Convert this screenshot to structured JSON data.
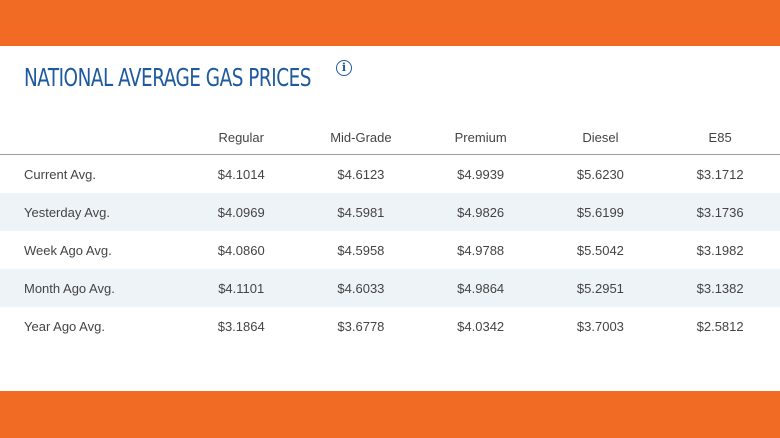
{
  "title": "NATIONAL AVERAGE GAS PRICES",
  "info_icon": "info-icon",
  "colors": {
    "accent_band": "#f26b24",
    "title": "#1f5a9e",
    "alt_row": "#eef3f8"
  },
  "table": {
    "headers": [
      "",
      "Regular",
      "Mid-Grade",
      "Premium",
      "Diesel",
      "E85"
    ],
    "rows": [
      {
        "label": "Current Avg.",
        "values": [
          "$4.1014",
          "$4.6123",
          "$4.9939",
          "$5.6230",
          "$3.1712"
        ]
      },
      {
        "label": "Yesterday Avg.",
        "values": [
          "$4.0969",
          "$4.5981",
          "$4.9826",
          "$5.6199",
          "$3.1736"
        ]
      },
      {
        "label": "Week Ago Avg.",
        "values": [
          "$4.0860",
          "$4.5958",
          "$4.9788",
          "$5.5042",
          "$3.1982"
        ]
      },
      {
        "label": "Month Ago Avg.",
        "values": [
          "$4.1101",
          "$4.6033",
          "$4.9864",
          "$5.2951",
          "$3.1382"
        ]
      },
      {
        "label": "Year Ago Avg.",
        "values": [
          "$3.1864",
          "$3.6778",
          "$4.0342",
          "$3.7003",
          "$2.5812"
        ]
      }
    ]
  }
}
